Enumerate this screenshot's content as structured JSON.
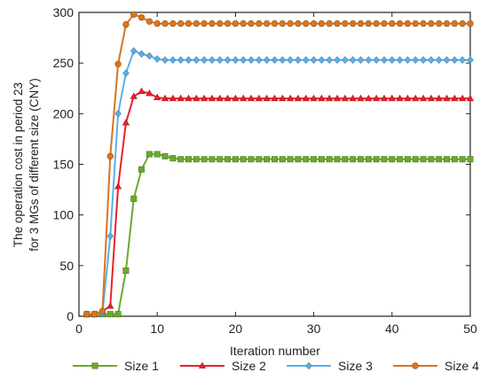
{
  "chart_data": {
    "type": "line",
    "title": "",
    "xlabel": "Iteration number",
    "ylabel_lines": [
      "The operation cost in period 23",
      "for 3 MGs of different size (CNY)"
    ],
    "xlim": [
      0,
      50
    ],
    "ylim": [
      0,
      300
    ],
    "xticks": [
      0,
      10,
      20,
      30,
      40,
      50
    ],
    "yticks": [
      0,
      50,
      100,
      150,
      200,
      250,
      300
    ],
    "grid": false,
    "legend_position": "bottom",
    "x": [
      1,
      2,
      3,
      4,
      5,
      6,
      7,
      8,
      9,
      10,
      11,
      12,
      13,
      14,
      15,
      16,
      17,
      18,
      19,
      20,
      21,
      22,
      23,
      24,
      25,
      26,
      27,
      28,
      29,
      30,
      31,
      32,
      33,
      34,
      35,
      36,
      37,
      38,
      39,
      40,
      41,
      42,
      43,
      44,
      45,
      46,
      47,
      48,
      49,
      50
    ],
    "series": [
      {
        "name": "Size 1",
        "color": "#6aaa2e",
        "marker": "square",
        "values": [
          2,
          2,
          2,
          2,
          2,
          45,
          116,
          145,
          160,
          160,
          158,
          156,
          155,
          155,
          155,
          155,
          155,
          155,
          155,
          155,
          155,
          155,
          155,
          155,
          155,
          155,
          155,
          155,
          155,
          155,
          155,
          155,
          155,
          155,
          155,
          155,
          155,
          155,
          155,
          155,
          155,
          155,
          155,
          155,
          155,
          155,
          155,
          155,
          155,
          155
        ]
      },
      {
        "name": "Size 2",
        "color": "#e8202a",
        "marker": "triangle",
        "values": [
          2,
          2,
          5,
          10,
          128,
          191,
          217,
          222,
          220,
          216,
          215,
          215,
          215,
          215,
          215,
          215,
          215,
          215,
          215,
          215,
          215,
          215,
          215,
          215,
          215,
          215,
          215,
          215,
          215,
          215,
          215,
          215,
          215,
          215,
          215,
          215,
          215,
          215,
          215,
          215,
          215,
          215,
          215,
          215,
          215,
          215,
          215,
          215,
          215,
          215
        ]
      },
      {
        "name": "Size 3",
        "color": "#5ab0e8",
        "marker": "diamond",
        "values": [
          2,
          2,
          3,
          79,
          200,
          240,
          262,
          259,
          257,
          254,
          253,
          253,
          253,
          253,
          253,
          253,
          253,
          253,
          253,
          253,
          253,
          253,
          253,
          253,
          253,
          253,
          253,
          253,
          253,
          253,
          253,
          253,
          253,
          253,
          253,
          253,
          253,
          253,
          253,
          253,
          253,
          253,
          253,
          253,
          253,
          253,
          253,
          253,
          253,
          253
        ]
      },
      {
        "name": "Size 4",
        "color": "#d9751f",
        "marker": "circle",
        "values": [
          2,
          2,
          5,
          158,
          249,
          288,
          298,
          295,
          291,
          289,
          289,
          289,
          289,
          289,
          289,
          289,
          289,
          289,
          289,
          289,
          289,
          289,
          289,
          289,
          289,
          289,
          289,
          289,
          289,
          289,
          289,
          289,
          289,
          289,
          289,
          289,
          289,
          289,
          289,
          289,
          289,
          289,
          289,
          289,
          289,
          289,
          289,
          289,
          289,
          289
        ]
      }
    ]
  }
}
